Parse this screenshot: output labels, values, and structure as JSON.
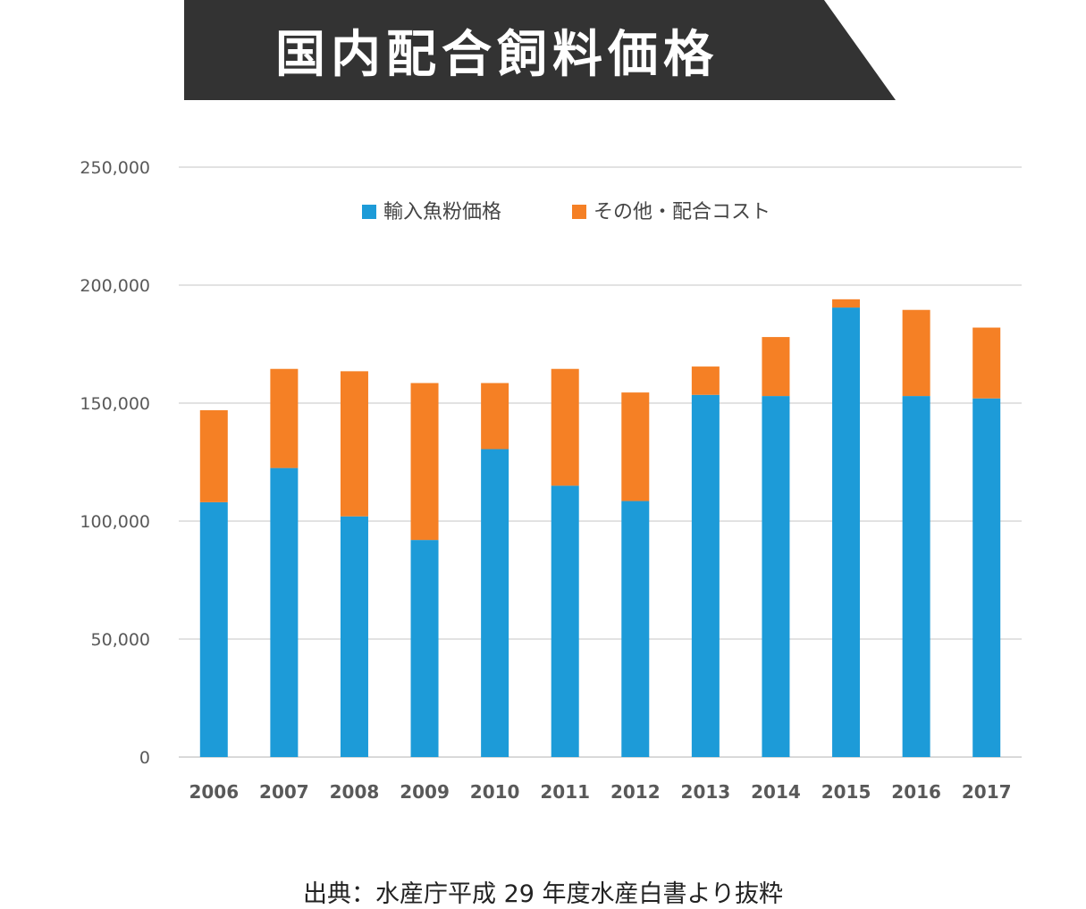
{
  "banner": {
    "title": "国内配合飼料価格"
  },
  "source_note": "出典：水産庁平成 29 年度水産白書より抜粋",
  "colors": {
    "banner_bg": "#333333",
    "blue": "#1d9bd8",
    "orange": "#f58025",
    "grid": "#d9d9d9",
    "tick_text": "#595959"
  },
  "chart_data": {
    "type": "bar",
    "stacked": true,
    "title": "",
    "xlabel": "",
    "ylabel": "",
    "ylim": [
      0,
      250000
    ],
    "yticks": [
      0,
      50000,
      100000,
      150000,
      200000,
      250000
    ],
    "ytick_labels": [
      "0",
      "50,000",
      "100,000",
      "150,000",
      "200,000",
      "250,000"
    ],
    "grid": true,
    "legend_position": "top",
    "categories": [
      "2006",
      "2007",
      "2008",
      "2009",
      "2010",
      "2011",
      "2012",
      "2013",
      "2014",
      "2015",
      "2016",
      "2017"
    ],
    "series": [
      {
        "name": "輸入魚粉価格",
        "color": "#1d9bd8",
        "values": [
          108000,
          122500,
          102000,
          92000,
          130500,
          115000,
          108500,
          153500,
          153000,
          190500,
          153000,
          152000
        ]
      },
      {
        "name": "その他・配合コスト",
        "color": "#f58025",
        "values": [
          39000,
          42000,
          61500,
          66500,
          28000,
          49500,
          46000,
          12000,
          25000,
          3500,
          36500,
          30000
        ]
      }
    ]
  }
}
